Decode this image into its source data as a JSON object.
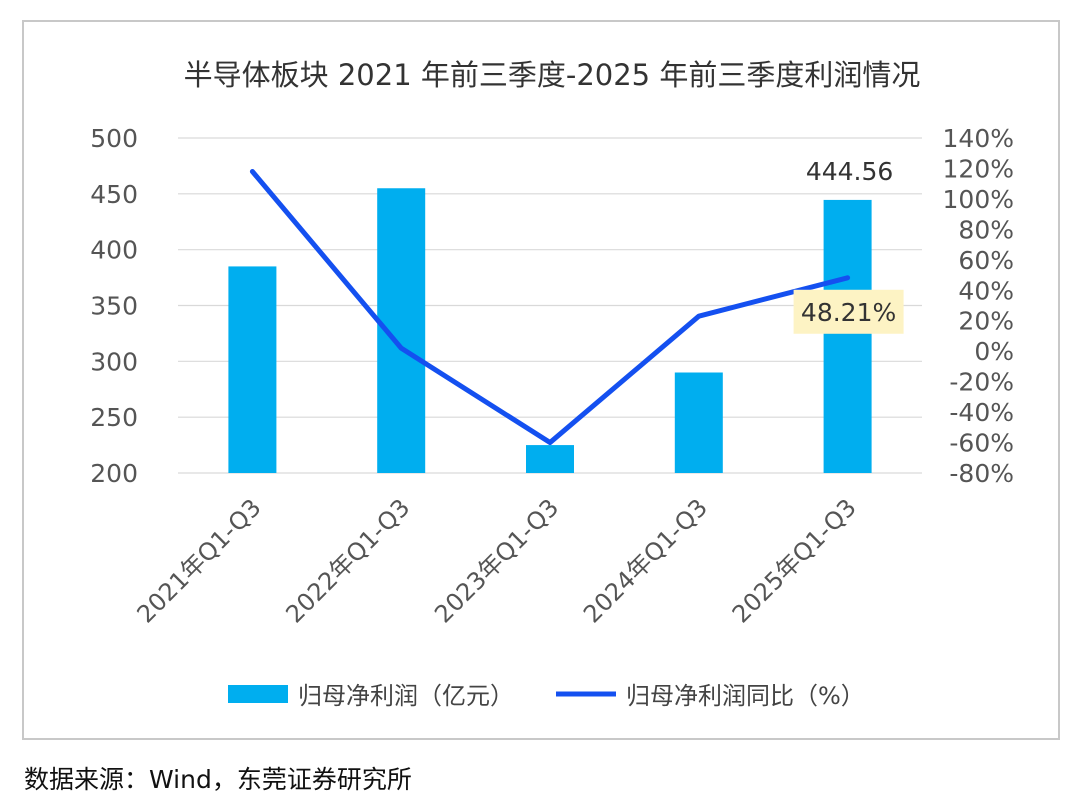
{
  "chart_data": {
    "type": "bar",
    "title": "半导体板块 2021 年前三季度-2025 年前三季度利润情况",
    "categories": [
      "2021年Q1-Q3",
      "2022年Q1-Q3",
      "2023年Q1-Q3",
      "2024年Q1-Q3",
      "2025年Q1-Q3"
    ],
    "series": [
      {
        "name": "归母净利润（亿元）",
        "type": "bar",
        "axis": "left",
        "color": "#00aeef",
        "values": [
          385,
          455,
          225,
          290,
          444.56
        ]
      },
      {
        "name": "归母净利润同比（%）",
        "type": "line",
        "axis": "right",
        "color": "#1450f0",
        "values": [
          118,
          2,
          -60,
          23,
          48.21
        ]
      }
    ],
    "y_left": {
      "min": 200,
      "max": 500,
      "ticks": [
        "500",
        "450",
        "400",
        "350",
        "300",
        "250",
        "200"
      ]
    },
    "y_right": {
      "min": -80,
      "max": 140,
      "ticks": [
        "140%",
        "120%",
        "100%",
        "80%",
        "60%",
        "40%",
        "20%",
        "0%",
        "-20%",
        "-40%",
        "-60%",
        "-80%"
      ]
    },
    "annotations": [
      {
        "series": 0,
        "index": 4,
        "text": "444.56"
      },
      {
        "series": 1,
        "index": 4,
        "text": "48.21%",
        "highlight": "#fdf3c4"
      }
    ],
    "grid": "horizontal",
    "legend_position": "bottom"
  },
  "source": "数据来源：Wind，东莞证券研究所"
}
